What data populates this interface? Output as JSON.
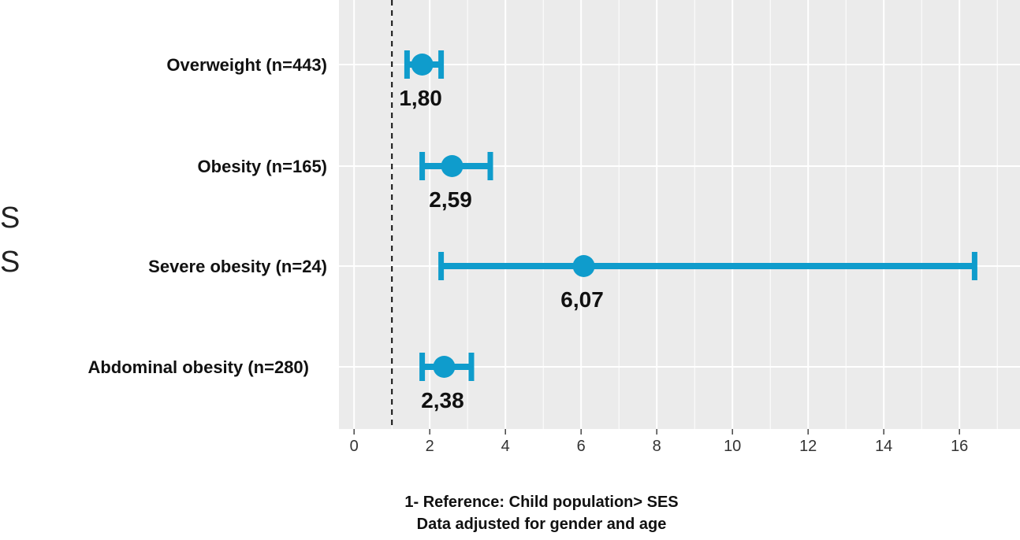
{
  "left_edge_text": [
    "S",
    "S"
  ],
  "chart_data": {
    "type": "forest",
    "categories": [
      "Overweight (n=443)",
      "Obesity (n=165)",
      "Severe obesity (n=24)",
      "Abdominal obesity (n=280)"
    ],
    "estimates": [
      1.8,
      2.59,
      6.07,
      2.38
    ],
    "estimate_labels": [
      "1,80",
      "2,59",
      "6,07",
      "2,38"
    ],
    "ci_lower": [
      1.4,
      1.8,
      2.3,
      1.8
    ],
    "ci_upper": [
      2.3,
      3.6,
      16.4,
      3.1
    ],
    "reference_line": 1,
    "xlim": [
      -0.4,
      17.6
    ],
    "xticks": [
      0,
      2,
      4,
      6,
      8,
      10,
      12,
      14,
      16
    ],
    "grid": true,
    "colors": {
      "marker": "#0f9ccc",
      "panel": "#ebebeb",
      "grid": "#ffffff"
    }
  },
  "footnote": {
    "line1": "1- Reference: Child population> SES",
    "line2": "Data adjusted for gender and age"
  }
}
